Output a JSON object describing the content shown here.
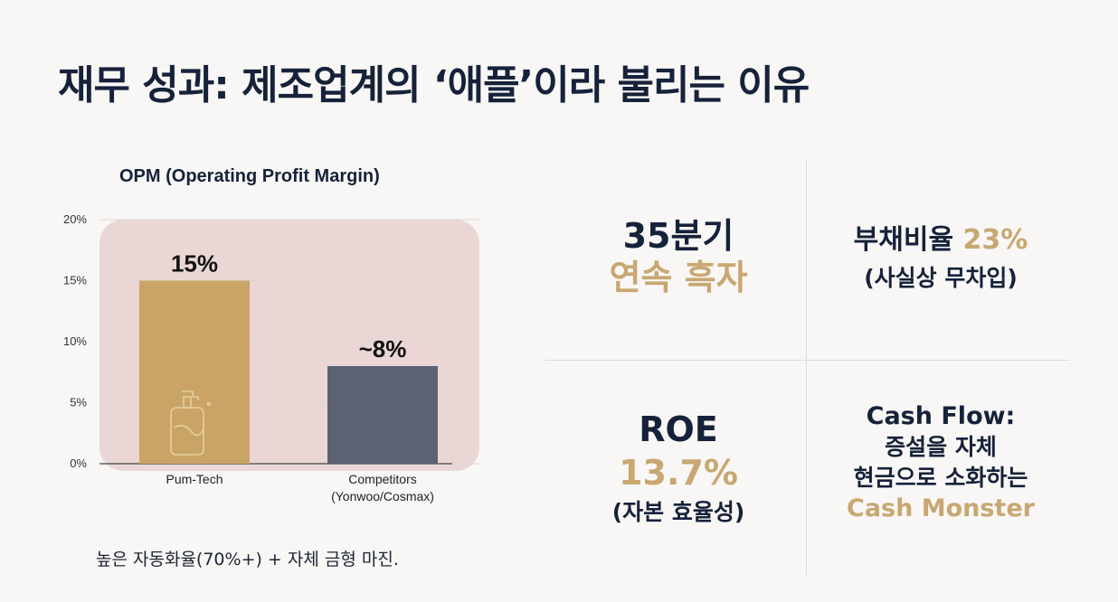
{
  "title": "재무 성과: 제조업계의 ‘애플’이라 불리는 이유",
  "chart_data": {
    "type": "bar",
    "title": "OPM (Operating Profit Margin)",
    "categories": [
      "Pum-Tech",
      "Competitors\n(Yonwoo/Cosmax)"
    ],
    "values": [
      15,
      8
    ],
    "data_labels": [
      "15%",
      "~8%"
    ],
    "ylim": [
      0,
      20
    ],
    "yticks": [
      0,
      5,
      10,
      15,
      20
    ],
    "ytick_labels": [
      "0%",
      "5%",
      "10%",
      "15%",
      "20%"
    ],
    "colors": [
      "#c9a466",
      "#5d6273"
    ],
    "background_color": "#ead7d5",
    "grid": true
  },
  "caption": "높은 자동화율(70%+) + 자체 금형 마진.",
  "metrics": {
    "streak": {
      "line1": "35분기",
      "line2": "연속 흑자"
    },
    "debt": {
      "label": "부채비율 ",
      "value": "23%",
      "note": "(사실상 무차입)"
    },
    "roe": {
      "label": "ROE",
      "value": "13.7%",
      "note": "(자본 효율성)"
    },
    "cash": {
      "line1": "Cash Flow:",
      "line2": "증설을 자체",
      "line3": "현금으로 소화하는",
      "highlight": "Cash Monster"
    }
  },
  "colors": {
    "navy": "#16223a",
    "gold": "#c8a772"
  },
  "icons": [
    "pump-bottle-icon"
  ]
}
